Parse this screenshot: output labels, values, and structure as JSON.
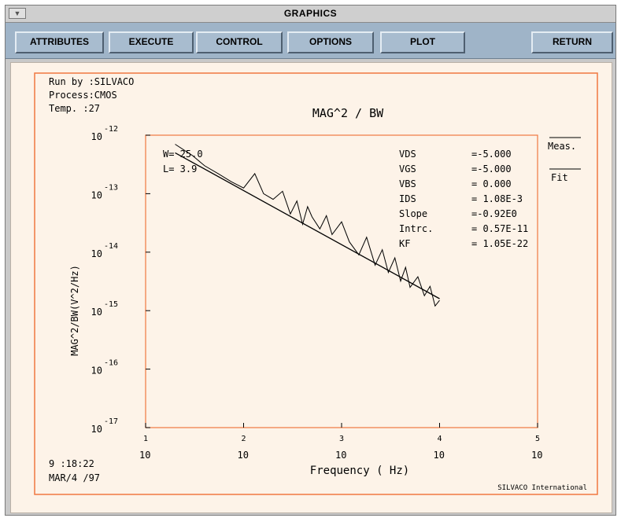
{
  "window": {
    "title": "GRAPHICS",
    "menu_glyph": "▼"
  },
  "toolbar": {
    "attributes": "ATTRIBUTES",
    "execute": "EXECUTE",
    "control": "CONTROL",
    "options": "OPTIONS",
    "plot": "PLOT",
    "return": "RETURN"
  },
  "info": {
    "run_by": "Run by :SILVACO",
    "process": "Process:CMOS",
    "temp": "Temp.  :27",
    "time": "9 :18:22",
    "date": "MAR/4 /97",
    "brand": "SILVACO International"
  },
  "device": {
    "w": "W= 25.0",
    "l": "L= 3.9"
  },
  "params": [
    {
      "name": "VDS",
      "value": "=-5.000"
    },
    {
      "name": "VGS",
      "value": "=-5.000"
    },
    {
      "name": "VBS",
      "value": "= 0.000"
    },
    {
      "name": "IDS",
      "value": "= 1.08E-3"
    },
    {
      "name": "Slope",
      "value": "=-0.92E0"
    },
    {
      "name": "Intrc.",
      "value": "= 0.57E-11"
    },
    {
      "name": "KF",
      "value": "= 1.05E-22"
    }
  ],
  "legend": {
    "meas": "Meas.",
    "fit": "Fit"
  },
  "colors": {
    "frame": "#f07840",
    "plot": "#000000",
    "paper": "#fdf3e8"
  },
  "chart_data": {
    "type": "line",
    "title": "MAG^2 / BW",
    "xlabel": "Frequency ( Hz)",
    "ylabel": "MAG^2/BW(V^2/Hz)",
    "x_scale": "log",
    "y_scale": "log",
    "xlim": [
      10,
      100000
    ],
    "ylim": [
      1e-17,
      1e-12
    ],
    "x_ticks": [
      {
        "base": "10",
        "exp": "1"
      },
      {
        "base": "10",
        "exp": "2"
      },
      {
        "base": "10",
        "exp": "3"
      },
      {
        "base": "10",
        "exp": "4"
      },
      {
        "base": "10",
        "exp": "5"
      }
    ],
    "y_ticks": [
      {
        "base": "10",
        "exp": "-12"
      },
      {
        "base": "10",
        "exp": "-13"
      },
      {
        "base": "10",
        "exp": "-14"
      },
      {
        "base": "10",
        "exp": "-15"
      },
      {
        "base": "10",
        "exp": "-16"
      },
      {
        "base": "10",
        "exp": "-17"
      }
    ],
    "legend_position": "top-right",
    "series": [
      {
        "name": "Meas.",
        "x": [
          20,
          30,
          40,
          55,
          75,
          100,
          130,
          160,
          200,
          250,
          300,
          350,
          400,
          450,
          500,
          600,
          700,
          800,
          1000,
          1200,
          1500,
          1800,
          2200,
          2600,
          3000,
          3500,
          4000,
          4500,
          5000,
          6000,
          7000,
          8000,
          9000,
          10000
        ],
        "y": [
          7e-13,
          4.5e-13,
          3e-13,
          2.2e-13,
          1.6e-13,
          1.25e-13,
          2.2e-13,
          1e-13,
          8e-14,
          1.1e-13,
          4.5e-14,
          7.5e-14,
          3e-14,
          6e-14,
          4e-14,
          2.5e-14,
          4.2e-14,
          2e-14,
          3.3e-14,
          1.5e-14,
          9e-15,
          1.8e-14,
          6e-15,
          1.1e-14,
          4.5e-15,
          8e-15,
          3.2e-15,
          5.5e-15,
          2.5e-15,
          3.8e-15,
          1.8e-15,
          2.6e-15,
          1.2e-15,
          1.5e-15
        ]
      },
      {
        "name": "Fit",
        "x": [
          20,
          10000
        ],
        "y": [
          5e-13,
          1.6e-15
        ]
      }
    ]
  }
}
